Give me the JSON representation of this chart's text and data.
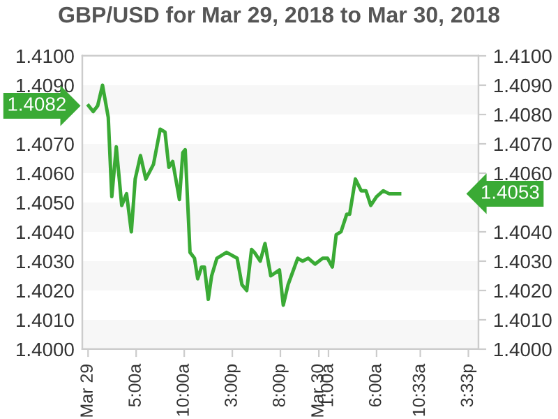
{
  "chart_data": {
    "type": "line",
    "title": "GBP/USD for Mar 29, 2018 to Mar 30, 2018",
    "x": [
      "2018-03-29T00:03",
      "2018-03-29T00:32",
      "2018-03-29T01:00",
      "2018-03-29T01:30",
      "2018-03-29T02:06",
      "2018-03-29T02:28",
      "2018-03-29T02:56",
      "2018-03-29T03:30",
      "2018-03-29T04:00",
      "2018-03-29T04:30",
      "2018-03-29T04:54",
      "2018-03-29T05:27",
      "2018-03-29T06:00",
      "2018-03-29T06:48",
      "2018-03-29T07:30",
      "2018-03-29T08:00",
      "2018-03-29T08:24",
      "2018-03-29T08:48",
      "2018-03-29T09:30",
      "2018-03-29T09:51",
      "2018-03-29T10:06",
      "2018-03-29T10:36",
      "2018-03-29T11:04",
      "2018-03-29T11:24",
      "2018-03-29T11:48",
      "2018-03-29T12:06",
      "2018-03-29T12:30",
      "2018-03-29T12:51",
      "2018-03-29T13:24",
      "2018-03-29T14:24",
      "2018-03-29T15:30",
      "2018-03-29T16:00",
      "2018-03-29T16:30",
      "2018-03-29T17:00",
      "2018-03-29T17:18",
      "2018-03-29T17:54",
      "2018-03-29T18:24",
      "2018-03-29T19:00",
      "2018-03-29T19:54",
      "2018-03-29T20:18",
      "2018-03-29T20:48",
      "2018-03-29T21:48",
      "2018-03-29T22:18",
      "2018-03-29T22:54",
      "2018-03-29T23:36",
      "2018-03-30T00:24",
      "2018-03-30T00:54",
      "2018-03-30T01:24",
      "2018-03-30T01:48",
      "2018-03-30T02:18",
      "2018-03-30T02:54",
      "2018-03-30T03:12",
      "2018-03-30T03:48",
      "2018-03-30T04:24",
      "2018-03-30T04:54",
      "2018-03-30T05:24",
      "2018-03-30T06:00",
      "2018-03-30T06:42",
      "2018-03-30T07:18",
      "2018-03-30T08:24"
    ],
    "series": [
      {
        "color": "#3aaa35",
        "values": [
          1.4083,
          1.4081,
          1.4083,
          1.409,
          1.4079,
          1.4052,
          1.4069,
          1.4049,
          1.4053,
          1.404,
          1.4058,
          1.4066,
          1.4058,
          1.4063,
          1.4075,
          1.4074,
          1.4062,
          1.4064,
          1.4051,
          1.4067,
          1.4068,
          1.4033,
          1.4031,
          1.4024,
          1.4028,
          1.4028,
          1.4017,
          1.4025,
          1.4031,
          1.4033,
          1.4031,
          1.4022,
          1.402,
          1.4034,
          1.4033,
          1.403,
          1.4036,
          1.4025,
          1.4027,
          1.4015,
          1.4022,
          1.4031,
          1.403,
          1.4031,
          1.4029,
          1.4031,
          1.4031,
          1.4028,
          1.4039,
          1.404,
          1.4046,
          1.4046,
          1.4058,
          1.4054,
          1.4054,
          1.4049,
          1.4052,
          1.4054,
          1.4053,
          1.4053
        ]
      }
    ],
    "xlim": [
      "2018-03-28T23:24",
      "2018-03-30T16:36"
    ],
    "xticks": [
      {
        "value": "2018-03-29",
        "label": "Mar 29"
      },
      {
        "value": "2018-03-29T05:00",
        "label": "5:00a"
      },
      {
        "value": "2018-03-29T10:00",
        "label": "10:00a"
      },
      {
        "value": "2018-03-29T15:00",
        "label": "3:00p"
      },
      {
        "value": "2018-03-29T20:00",
        "label": "8:00p"
      },
      {
        "value": "2018-03-30",
        "label": "Mar 30"
      },
      {
        "value": "2018-03-30T01:00",
        "label": "1:00a"
      },
      {
        "value": "2018-03-30T06:00",
        "label": "6:00a"
      },
      {
        "value": "2018-03-30T10:33",
        "label": "10:33a"
      },
      {
        "value": "2018-03-30T15:33",
        "label": "3:33p"
      }
    ],
    "ylim": [
      1.4,
      1.41
    ],
    "yticks": [
      {
        "value": 1.4,
        "label": "1.4000"
      },
      {
        "value": 1.401,
        "label": "1.4010"
      },
      {
        "value": 1.402,
        "label": "1.4020"
      },
      {
        "value": 1.403,
        "label": "1.4030"
      },
      {
        "value": 1.404,
        "label": "1.4040"
      },
      {
        "value": 1.405,
        "label": "1.4050"
      },
      {
        "value": 1.406,
        "label": "1.4060"
      },
      {
        "value": 1.407,
        "label": "1.4070"
      },
      {
        "value": 1.408,
        "label": null
      },
      {
        "value": 1.409,
        "label": "1.4090"
      },
      {
        "value": 1.41,
        "label": "1.4100"
      }
    ],
    "y2lim": [
      1.4,
      1.41
    ],
    "y2ticks": [
      {
        "value": 1.4,
        "label": "1.4000"
      },
      {
        "value": 1.401,
        "label": "1.4010"
      },
      {
        "value": 1.402,
        "label": "1.4020"
      },
      {
        "value": 1.403,
        "label": "1.4030"
      },
      {
        "value": 1.404,
        "label": "1.4040"
      },
      {
        "value": 1.405,
        "label": null
      },
      {
        "value": 1.406,
        "label": "1.4060"
      },
      {
        "value": 1.407,
        "label": "1.4070"
      },
      {
        "value": 1.408,
        "label": "1.4080"
      },
      {
        "value": 1.409,
        "label": "1.4090"
      },
      {
        "value": 1.41,
        "label": "1.4100"
      }
    ],
    "annotations": [
      "1.4082",
      "1.4053"
    ],
    "bands": [
      {
        "axis": "y",
        "from": 1.4,
        "to": 1.401,
        "color": "#f7f7f7"
      },
      {
        "axis": "y",
        "from": 1.402,
        "to": 1.403,
        "color": "#f7f7f7"
      },
      {
        "axis": "y",
        "from": 1.404,
        "to": 1.405,
        "color": "#f7f7f7"
      },
      {
        "axis": "y",
        "from": 1.406,
        "to": 1.407,
        "color": "#f7f7f7"
      },
      {
        "axis": "y",
        "from": 1.408,
        "to": 1.409,
        "color": "#f7f7f7"
      }
    ],
    "marker": "none",
    "line_style": "solid",
    "legend": false
  }
}
